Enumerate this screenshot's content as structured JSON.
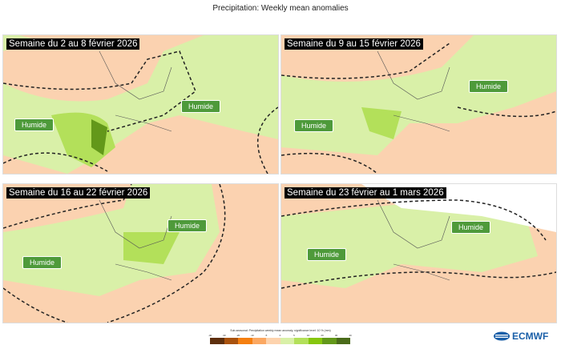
{
  "title": "Precipitation: Weekly mean anomalies",
  "panels": [
    {
      "label": "Semaine du 2 au 8 février 2026",
      "humide": [
        "Humide",
        "Humide"
      ]
    },
    {
      "label": "Semaine du 9 au 15 février 2026",
      "humide": [
        "Humide",
        "Humide"
      ]
    },
    {
      "label": "Semaine du 16 au 22 février 2026",
      "humide": [
        "Humide",
        "Humide"
      ]
    },
    {
      "label": "Semaine du 23 février au 1 mars 2026",
      "humide": [
        "Humide",
        "Humide"
      ]
    }
  ],
  "legend": {
    "title": "Sub-seasonal: Precipitation weekly mean anomaly, significance level: 10 % (mm)",
    "ticks": [
      "-40",
      "-30",
      "-20",
      "-10",
      "-5",
      "0",
      "5",
      "10",
      "20",
      "30",
      "40"
    ],
    "colors": [
      "#5e2f0d",
      "#a9520e",
      "#f57f10",
      "#fba862",
      "#fdd3ae",
      "#d9f0a8",
      "#b3e05a",
      "#86c60e",
      "#63981a",
      "#4a6b1a"
    ]
  },
  "logo": "ECMWF",
  "colors": {
    "dry": "#fbd2b0",
    "wet_light": "#d9f0a8",
    "wet_mid": "#b3e05a",
    "wet_dark": "#63981a",
    "label_bg": "#4e9a3a"
  }
}
